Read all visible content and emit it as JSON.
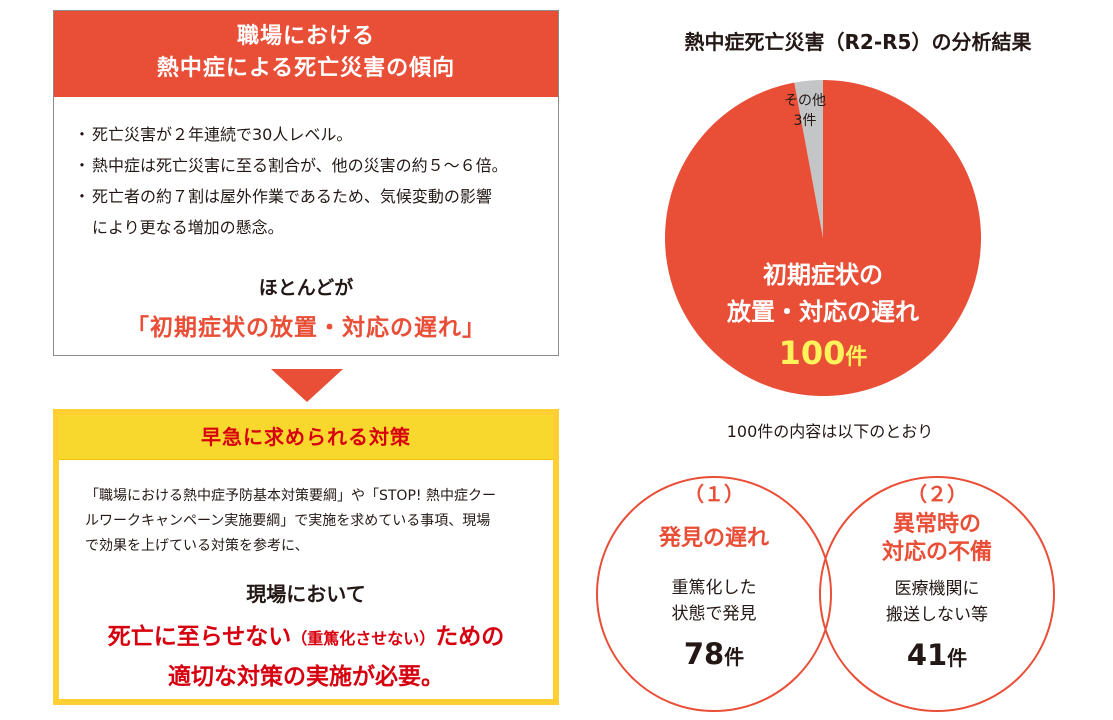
{
  "trend": {
    "title_line1": "職場における",
    "title_line2": "熱中症による死亡災害の傾向",
    "bullets": [
      "死亡災害が２年連続で30人レベル。",
      "熱中症は死亡災害に至る割合が、他の災害の約５～６倍。",
      "死亡者の約７割は屋外作業であるため、気候変動の影響"
    ],
    "bullet3_cont": "により更なる増加の懸念。",
    "lead": "ほとんどが",
    "highlight": "「初期症状の放置・対応の遅れ」"
  },
  "measures": {
    "title": "早急に求められる対策",
    "body_lines": [
      "「職場における熱中症予防基本対策要綱」や「STOP! 熱中症クー",
      "ルワークキャンペーン実施要綱」で実施を求めている事項、現場",
      "で効果を上げている対策を参考に、"
    ],
    "lead": "現場において",
    "conclusion_a": "死亡に至らせない",
    "conclusion_b": "（重篤化させない）",
    "conclusion_c": "ための",
    "conclusion_line2": "適切な対策の実施が必要。"
  },
  "pie_note": "100件の内容は以下のとおり",
  "chart_data": {
    "type": "pie",
    "title": "熱中症死亡災害（R2-R5）の分析結果",
    "slices": [
      {
        "label_line1": "初期症状の",
        "label_line2": "放置・対応の遅れ",
        "value": 100,
        "count_text": "100",
        "unit": "件",
        "color": "#e94e37"
      },
      {
        "label_line1": "その他",
        "label_line2": "3件",
        "value": 3,
        "color": "#c4c5c7"
      }
    ],
    "breakdown": [
      {
        "num": "（１）",
        "title_lines": [
          "発見の遅れ"
        ],
        "desc_lines": [
          "重篤化した",
          "状態で発見"
        ],
        "count": "78",
        "unit": "件"
      },
      {
        "num": "（２）",
        "title_lines": [
          "異常時の",
          "対応の不備"
        ],
        "desc_lines": [
          "医療機関に",
          "搬送しない等"
        ],
        "count": "41",
        "unit": "件"
      }
    ]
  }
}
